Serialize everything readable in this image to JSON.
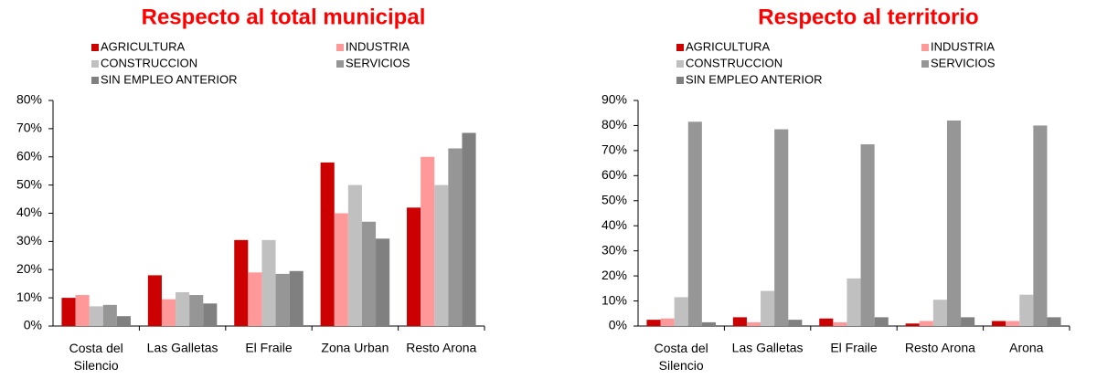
{
  "chart_data": [
    {
      "type": "bar",
      "title": "Respecto al total municipal",
      "categories": [
        "Costa del Silencio",
        "Las Galletas",
        "El Fraile",
        "Zona Urban",
        "Resto Arona"
      ],
      "series": [
        {
          "name": "AGRICULTURA",
          "color": "#cc0000",
          "values": [
            10,
            18,
            30.5,
            58,
            42
          ]
        },
        {
          "name": "INDUSTRIA",
          "color": "#ff9999",
          "values": [
            11,
            9.5,
            19,
            40,
            60
          ]
        },
        {
          "name": "CONSTRUCCION",
          "color": "#c0c0c0",
          "values": [
            7,
            12,
            30.5,
            50,
            50
          ]
        },
        {
          "name": "SERVICIOS",
          "color": "#969696",
          "values": [
            7.5,
            11,
            18.5,
            37,
            63
          ]
        },
        {
          "name": "SIN EMPLEO ANTERIOR",
          "color": "#808080",
          "values": [
            3.5,
            8,
            19.5,
            31,
            68.5
          ]
        }
      ],
      "ylim": [
        0,
        80
      ],
      "yticks": [
        {
          "value": 0,
          "label": "0%"
        },
        {
          "value": 10,
          "label": "10%"
        },
        {
          "value": 20,
          "label": "20%"
        },
        {
          "value": 30,
          "label": "30%"
        },
        {
          "value": 40,
          "label": "40%"
        },
        {
          "value": 50,
          "label": "50%"
        },
        {
          "value": 60,
          "label": "60%"
        },
        {
          "value": 70,
          "label": "70%"
        },
        {
          "value": 80,
          "label": "80%"
        }
      ]
    },
    {
      "type": "bar",
      "title": "Respecto al territorio",
      "categories": [
        "Costa del Silencio",
        "Las Galletas",
        "El Fraile",
        "Resto Arona",
        "Arona"
      ],
      "series": [
        {
          "name": "AGRICULTURA",
          "color": "#cc0000",
          "values": [
            2.5,
            3.5,
            3,
            1,
            2
          ]
        },
        {
          "name": "INDUSTRIA",
          "color": "#ff9999",
          "values": [
            3,
            1.5,
            1.5,
            2,
            2
          ]
        },
        {
          "name": "CONSTRUCCION",
          "color": "#c0c0c0",
          "values": [
            11.5,
            14,
            19,
            10.5,
            12.5
          ]
        },
        {
          "name": "SERVICIOS",
          "color": "#969696",
          "values": [
            81.5,
            78.5,
            72.5,
            82,
            80
          ]
        },
        {
          "name": "SIN EMPLEO ANTERIOR",
          "color": "#808080",
          "values": [
            1.5,
            2.5,
            3.5,
            3.5,
            3.5
          ]
        }
      ],
      "ylim": [
        0,
        90
      ],
      "yticks": [
        {
          "value": 0,
          "label": "0%"
        },
        {
          "value": 10,
          "label": "10%"
        },
        {
          "value": 20,
          "label": "20%"
        },
        {
          "value": 30,
          "label": "30%"
        },
        {
          "value": 40,
          "label": "40%"
        },
        {
          "value": 50,
          "label": "50%"
        },
        {
          "value": 60,
          "label": "60%"
        },
        {
          "value": 70,
          "label": "70%"
        },
        {
          "value": 80,
          "label": "80%"
        },
        {
          "value": 90,
          "label": "90%"
        }
      ]
    }
  ]
}
